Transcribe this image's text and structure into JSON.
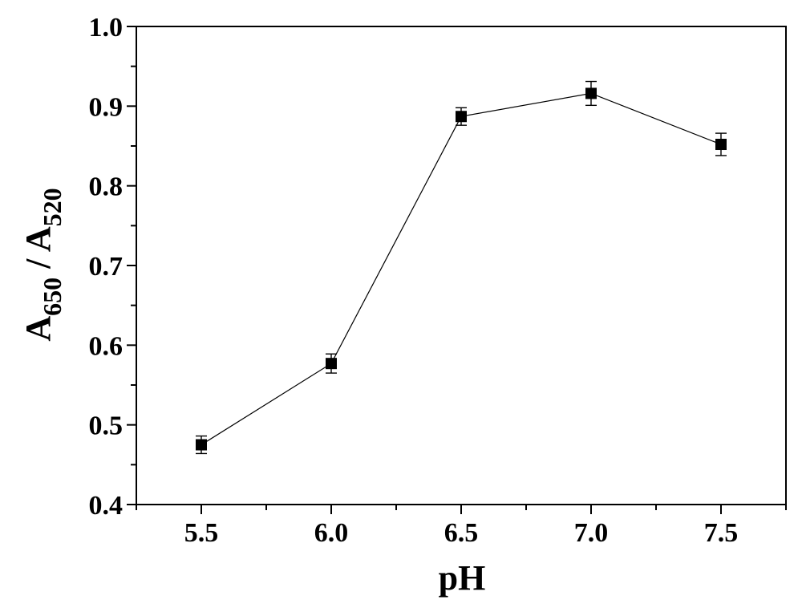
{
  "chart_data": {
    "type": "scatter",
    "xlabel": "pH",
    "ylabel": {
      "main": "A",
      "sub1": "650",
      "sep": " / ",
      "main2": "A",
      "sub2": "520"
    },
    "xlim": [
      5.25,
      7.75
    ],
    "ylim": [
      0.4,
      1.0
    ],
    "x_ticks": [
      5.5,
      6.0,
      6.5,
      7.0,
      7.5
    ],
    "x_tick_labels": [
      "5.5",
      "6.0",
      "6.5",
      "7.0",
      "7.5"
    ],
    "y_ticks": [
      0.4,
      0.5,
      0.6,
      0.7,
      0.8,
      0.9,
      1.0
    ],
    "y_tick_labels": [
      "0.4",
      "0.5",
      "0.6",
      "0.7",
      "0.8",
      "0.9",
      "1.0"
    ],
    "x_minor_step": 0.25,
    "y_minor_step": 0.05,
    "grid": false,
    "marker": "square",
    "series": [
      {
        "x": [
          5.5,
          6.0,
          6.5,
          7.0,
          7.5
        ],
        "y": [
          0.475,
          0.577,
          0.887,
          0.916,
          0.852
        ],
        "error": [
          0.011,
          0.012,
          0.011,
          0.015,
          0.014
        ]
      }
    ]
  }
}
